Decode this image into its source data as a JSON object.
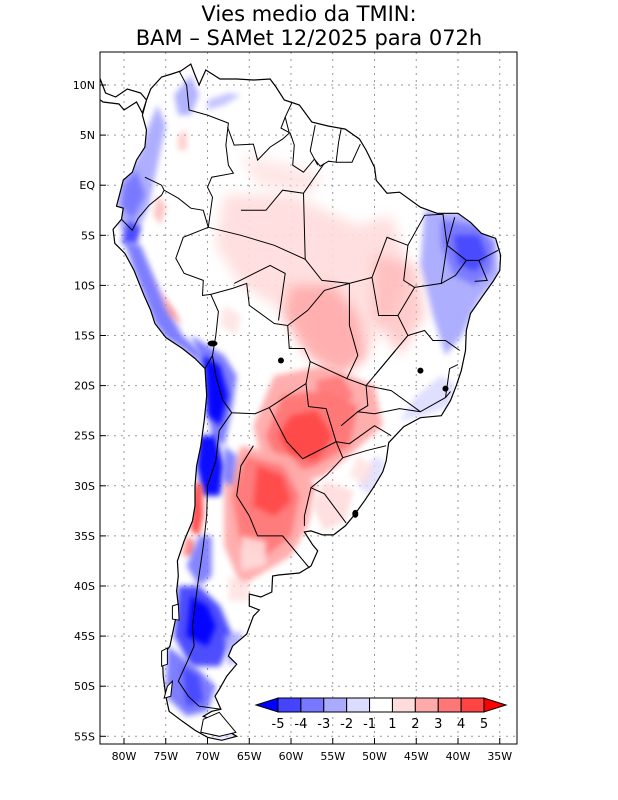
{
  "title": {
    "line1": "Vies medio da TMIN:",
    "line2": "BAM – SAMet 12/2025  para 072h"
  },
  "map": {
    "variable": "TMIN bias",
    "lon_range": [
      -83,
      -34
    ],
    "lat_range": [
      -56,
      13
    ],
    "lon_ticks": [
      {
        "value": -80,
        "label": "80W"
      },
      {
        "value": -75,
        "label": "75W"
      },
      {
        "value": -70,
        "label": "70W"
      },
      {
        "value": -65,
        "label": "65W"
      },
      {
        "value": -60,
        "label": "60W"
      },
      {
        "value": -55,
        "label": "55W"
      },
      {
        "value": -50,
        "label": "50W"
      },
      {
        "value": -45,
        "label": "45W"
      },
      {
        "value": -40,
        "label": "40W"
      },
      {
        "value": -35,
        "label": "35W"
      }
    ],
    "lat_ticks": [
      {
        "value": 10,
        "label": "10N"
      },
      {
        "value": 5,
        "label": "5N"
      },
      {
        "value": 0,
        "label": "EQ"
      },
      {
        "value": -5,
        "label": "5S"
      },
      {
        "value": -10,
        "label": "10S"
      },
      {
        "value": -15,
        "label": "15S"
      },
      {
        "value": -20,
        "label": "20S"
      },
      {
        "value": -25,
        "label": "25S"
      },
      {
        "value": -30,
        "label": "30S"
      },
      {
        "value": -35,
        "label": "35S"
      },
      {
        "value": -40,
        "label": "40S"
      },
      {
        "value": -45,
        "label": "45S"
      },
      {
        "value": -50,
        "label": "50S"
      },
      {
        "value": -55,
        "label": "55S"
      }
    ]
  },
  "colorbar": {
    "levels": [
      "-5",
      "-4",
      "-3",
      "-2",
      "-1",
      "1",
      "2",
      "3",
      "4",
      "5"
    ],
    "colors": [
      "#0000ff",
      "#4444ff",
      "#7777ff",
      "#aaaaff",
      "#dcdcff",
      "#ffffff",
      "#ffdcdc",
      "#ffaaaa",
      "#ff7777",
      "#ff4444",
      "#ff0000"
    ]
  },
  "colors": {
    "land_outline": "#000000",
    "grid": "#999999"
  }
}
